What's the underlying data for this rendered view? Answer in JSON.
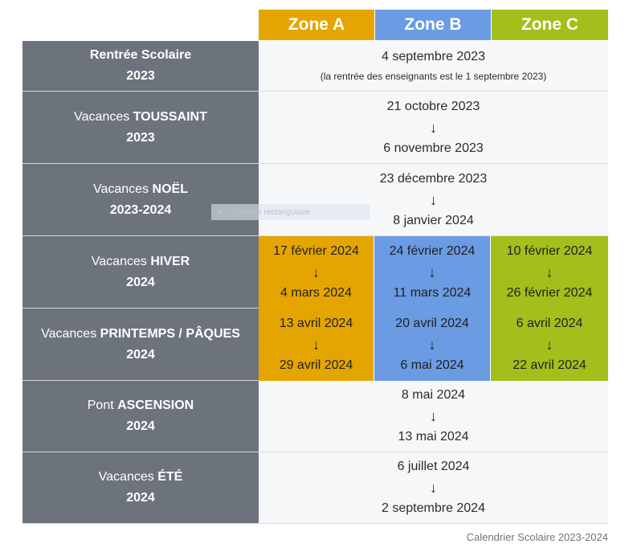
{
  "zones": {
    "a": "Zone A",
    "b": "Zone B",
    "c": "Zone C"
  },
  "colors": {
    "zone_a": "#e5a500",
    "zone_b": "#6b9be2",
    "zone_c": "#a3bf1b",
    "label_bg": "#6c737d",
    "cell_bg": "#f6f7f9"
  },
  "rows": {
    "rentree": {
      "label_pre": "",
      "label_bold": "Rentrée Scolaire",
      "year": "2023",
      "date": "4 septembre 2023",
      "note": "(la rentrée des enseignants est le 1 septembre 2023)"
    },
    "toussaint": {
      "label_pre": "Vacances ",
      "label_bold": "TOUSSAINT",
      "year": "2023",
      "start": "21 octobre 2023",
      "end": "6 novembre 2023"
    },
    "noel": {
      "label_pre": "Vacances ",
      "label_bold": "NOËL",
      "year": "2023-2024",
      "start": "23 décembre 2023",
      "end": "8 janvier 2024"
    },
    "hiver": {
      "label_pre": "Vacances ",
      "label_bold": "HIVER",
      "year": "2024",
      "a_start": "17 février 2024",
      "a_end": "4 mars 2024",
      "b_start": "24 février 2024",
      "b_end": "11 mars 2024",
      "c_start": "10 février 2024",
      "c_end": "26 février 2024"
    },
    "printemps": {
      "label_pre": "Vacances ",
      "label_bold": "PRINTEMPS / PÂQUES",
      "year": "2024",
      "a_start": "13 avril 2024",
      "a_end": "29 avril 2024",
      "b_start": "20 avril 2024",
      "b_end": "6 mai 2024",
      "c_start": "6 avril 2024",
      "c_end": "22 avril 2024"
    },
    "ascension": {
      "label_pre": "Pont ",
      "label_bold": "ASCENSION",
      "year": "2024",
      "start": "8 mai 2024",
      "end": "13 mai 2024"
    },
    "ete": {
      "label_pre": "Vacances ",
      "label_bold": "ÉTÉ",
      "year": "2024",
      "start": "6 juillet 2024",
      "end": "2 septembre 2024"
    }
  },
  "arrow_glyph": "🡓",
  "caption": "Calendrier Scolaire 2023-2024",
  "overlay_text": "Capture rectangulaire"
}
